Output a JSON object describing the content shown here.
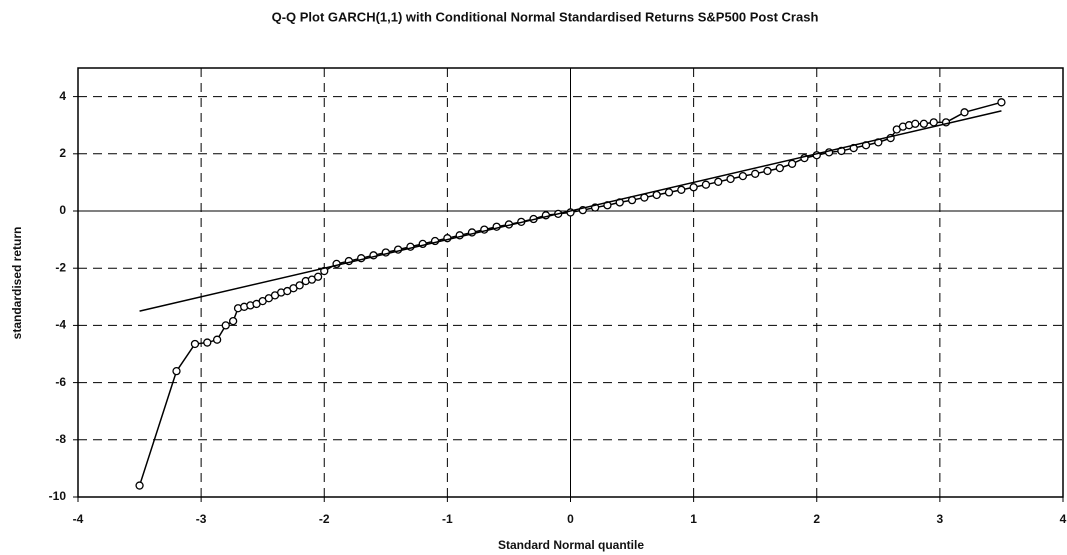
{
  "chart_data": {
    "type": "scatter",
    "title": "Q-Q Plot GARCH(1,1) with Conditional Normal Standardised Returns S&P500 Post Crash",
    "xlabel": "Standard Normal quantile",
    "ylabel": "standardised return",
    "xlim": [
      -4,
      4
    ],
    "xticks": [
      -4,
      -3,
      -2,
      -1,
      0,
      1,
      2,
      3,
      4
    ],
    "ylim": [
      -10,
      5
    ],
    "yticks": [
      -10,
      -8,
      -6,
      -4,
      -2,
      0,
      2,
      4
    ],
    "grid": true,
    "series": [
      {
        "color": "#000000",
        "marker": "circle",
        "x": [
          -3.5,
          -3.2,
          -3.05,
          -2.95,
          -2.87,
          -2.8,
          -2.74,
          -2.7,
          -2.65,
          -2.6,
          -2.55,
          -2.5,
          -2.45,
          -2.4,
          -2.35,
          -2.3,
          -2.25,
          -2.2,
          -2.15,
          -2.1,
          -2.05,
          -2.0,
          -1.9,
          -1.8,
          -1.7,
          -1.6,
          -1.5,
          -1.4,
          -1.3,
          -1.2,
          -1.1,
          -1.0,
          -0.9,
          -0.8,
          -0.7,
          -0.6,
          -0.5,
          -0.4,
          -0.3,
          -0.2,
          -0.1,
          0,
          0.1,
          0.2,
          0.3,
          0.4,
          0.5,
          0.6,
          0.7,
          0.8,
          0.9,
          1.0,
          1.1,
          1.2,
          1.3,
          1.4,
          1.5,
          1.6,
          1.7,
          1.8,
          1.9,
          2.0,
          2.1,
          2.2,
          2.3,
          2.4,
          2.5,
          2.6,
          2.65,
          2.7,
          2.75,
          2.8,
          2.87,
          2.95,
          3.05,
          3.2,
          3.5
        ],
        "values": [
          -9.6,
          -5.6,
          -4.65,
          -4.6,
          -4.5,
          -4.0,
          -3.85,
          -3.4,
          -3.35,
          -3.3,
          -3.25,
          -3.15,
          -3.05,
          -2.95,
          -2.85,
          -2.8,
          -2.7,
          -2.6,
          -2.45,
          -2.4,
          -2.3,
          -2.1,
          -1.85,
          -1.75,
          -1.65,
          -1.55,
          -1.45,
          -1.35,
          -1.25,
          -1.15,
          -1.05,
          -0.95,
          -0.85,
          -0.75,
          -0.65,
          -0.55,
          -0.47,
          -0.38,
          -0.28,
          -0.15,
          -0.1,
          -0.05,
          0.03,
          0.12,
          0.2,
          0.3,
          0.38,
          0.47,
          0.56,
          0.65,
          0.74,
          0.83,
          0.92,
          1.02,
          1.12,
          1.22,
          1.3,
          1.4,
          1.5,
          1.65,
          1.85,
          1.95,
          2.05,
          2.1,
          2.2,
          2.3,
          2.4,
          2.55,
          2.85,
          2.95,
          3.0,
          3.05,
          3.05,
          3.1,
          3.1,
          3.45,
          3.8
        ]
      },
      {
        "color": "#000000",
        "x": [
          -3.5,
          3.5
        ],
        "values": [
          -3.5,
          3.5
        ]
      }
    ]
  }
}
